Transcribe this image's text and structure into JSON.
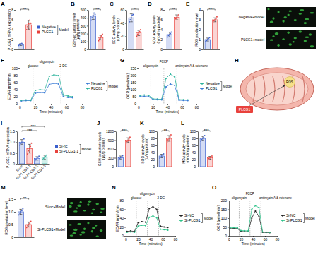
{
  "chart_data": [
    {
      "panel": "A",
      "type": "bar",
      "y_label": "PLCG1 mRNA expression",
      "categories": [
        "Negative",
        "PLCG1"
      ],
      "colors": [
        "#3a5fcd",
        "#e8413c"
      ],
      "values": [
        1.0,
        5.0
      ],
      "errors": [
        0.2,
        0.9
      ],
      "points": [
        [
          0.8,
          0.95,
          1.05,
          1.2,
          0.9
        ],
        [
          4.0,
          4.6,
          5.2,
          5.9,
          5.3
        ]
      ],
      "ylim": [
        0,
        8
      ],
      "yticks": [
        0,
        2,
        4,
        6,
        8
      ],
      "tick_labels": "y",
      "legend": "right",
      "legend_title": "Model",
      "significance": [
        {
          "from": 0,
          "to": 1,
          "label": "**"
        }
      ]
    },
    {
      "panel": "B",
      "type": "bar",
      "y_label": "GSH-px activity levels (μg/g protein)",
      "categories": [
        null,
        null
      ],
      "colors": [
        "#3a5fcd",
        "#e8413c"
      ],
      "values": [
        420,
        150
      ],
      "errors": [
        40,
        30
      ],
      "points": [
        [
          370,
          400,
          430,
          460,
          440
        ],
        [
          110,
          130,
          150,
          170,
          190
        ]
      ],
      "ylim": [
        0,
        500
      ],
      "yticks": [
        0,
        100,
        200,
        300,
        400,
        500
      ],
      "tick_labels": "y",
      "significance": [
        {
          "from": 0,
          "to": 1,
          "label": "***"
        }
      ]
    },
    {
      "panel": "C",
      "type": "bar",
      "y_label": "SOD activity levels (U/mg protein)",
      "categories": [
        null,
        null
      ],
      "colors": [
        "#3a5fcd",
        "#e8413c"
      ],
      "values": [
        48,
        25
      ],
      "errors": [
        6,
        4
      ],
      "points": [
        [
          42,
          45,
          48,
          52,
          53
        ],
        [
          20,
          23,
          25,
          27,
          30
        ]
      ],
      "ylim": [
        0,
        60
      ],
      "yticks": [
        0,
        20,
        40,
        60
      ],
      "tick_labels": "y",
      "significance": [
        {
          "from": 0,
          "to": 1,
          "label": "**"
        }
      ]
    },
    {
      "panel": "D",
      "type": "bar",
      "y_label": "MDA activity levels (nmol/mg protein)",
      "categories": [
        null,
        null
      ],
      "colors": [
        "#3a5fcd",
        "#e8413c"
      ],
      "values": [
        3.0,
        6.5
      ],
      "errors": [
        0.5,
        0.5
      ],
      "points": [
        [
          2.5,
          2.8,
          3.0,
          3.2,
          3.5
        ],
        [
          6.0,
          6.2,
          6.5,
          6.8,
          7.0
        ]
      ],
      "ylim": [
        0,
        8
      ],
      "yticks": [
        0,
        2,
        4,
        6,
        8
      ],
      "tick_labels": "y",
      "significance": [
        {
          "from": 0,
          "to": 1,
          "label": "**"
        }
      ]
    },
    {
      "panel": "E",
      "type": "bar",
      "y_label": "ROS production level",
      "categories": [
        null,
        null
      ],
      "colors": [
        "#3a5fcd",
        "#e8413c"
      ],
      "values": [
        1.0,
        3.0
      ],
      "errors": [
        0.15,
        0.2
      ],
      "points": [
        [
          0.8,
          0.9,
          1.0,
          1.1,
          1.2
        ],
        [
          2.7,
          2.9,
          3.0,
          3.1,
          3.3
        ]
      ],
      "ylim": [
        0,
        4
      ],
      "yticks": [
        0,
        1,
        2,
        3,
        4
      ],
      "tick_labels": "y",
      "significance": [
        {
          "from": 0,
          "to": 1,
          "label": "***"
        }
      ]
    },
    {
      "panel": "F",
      "type": "line",
      "y_label": "ECAR (mpH/min)",
      "x_label": "Time (minutes)",
      "x": [
        2,
        8,
        14,
        20,
        26,
        32,
        38,
        44,
        50,
        56,
        62,
        68
      ],
      "xlim": [
        0,
        80
      ],
      "xticks": [
        0,
        20,
        40,
        60,
        80
      ],
      "ylim": [
        0,
        100
      ],
      "yticks": [
        0,
        20,
        40,
        60,
        80,
        100
      ],
      "injections": [
        {
          "label": "glucose",
          "x": 17
        },
        {
          "label": "oligomycin",
          "x": 35
        },
        {
          "label": "2-DG",
          "x": 53
        }
      ],
      "marker": "circle",
      "legend": "right",
      "legend_title": "Model",
      "series": [
        {
          "name": "Negative",
          "color": "#3a7bd5",
          "values": [
            8,
            9,
            9,
            30,
            32,
            31,
            55,
            58,
            56,
            20,
            18,
            17
          ]
        },
        {
          "name": "PLCG1",
          "color": "#29b39b",
          "values": [
            10,
            11,
            10,
            38,
            40,
            39,
            78,
            82,
            80,
            25,
            22,
            20
          ]
        }
      ]
    },
    {
      "panel": "G",
      "type": "line",
      "y_label": "OCR (pmol/min)",
      "x_label": "Time (minutes)",
      "x": [
        2,
        8,
        14,
        20,
        26,
        32,
        38,
        44,
        50,
        56,
        62,
        68
      ],
      "xlim": [
        0,
        80
      ],
      "xticks": [
        0,
        20,
        40,
        60,
        80
      ],
      "ylim": [
        0,
        250
      ],
      "yticks": [
        0,
        50,
        100,
        150,
        200,
        250
      ],
      "injections": [
        {
          "label": "oligomycin",
          "x": 17
        },
        {
          "label": "FCCP",
          "x": 35
        },
        {
          "label": "antimycin A & rotenone",
          "x": 53
        }
      ],
      "marker": "circle",
      "legend": "right",
      "legend_title": "Model",
      "series": [
        {
          "name": "Negative",
          "color": "#29b39b",
          "values": [
            60,
            62,
            60,
            35,
            33,
            32,
            180,
            210,
            190,
            30,
            28,
            27
          ]
        },
        {
          "name": "PLCG1",
          "color": "#3a7bd5",
          "values": [
            50,
            52,
            50,
            30,
            29,
            28,
            120,
            140,
            130,
            25,
            24,
            23
          ]
        }
      ]
    },
    {
      "panel": "I",
      "type": "bar",
      "y_label": "PLCG1 mRNA expression",
      "categories": [
        "Si-nc",
        "Si-PLCG1-1",
        "Si-PLCG1-2",
        "Si-PLCG1-3"
      ],
      "colors": [
        "#3a5fcd",
        "#e8413c",
        "#3a5fcd",
        "#2fb5a0"
      ],
      "values": [
        1.0,
        0.7,
        0.25,
        0.3
      ],
      "errors": [
        0.12,
        0.2,
        0.08,
        0.1
      ],
      "points": [
        [
          0.85,
          0.95,
          1.0,
          1.05,
          1.15
        ],
        [
          0.45,
          0.6,
          0.7,
          0.8,
          0.95
        ],
        [
          0.15,
          0.2,
          0.25,
          0.3,
          0.35
        ],
        [
          0.2,
          0.25,
          0.3,
          0.35,
          0.4
        ]
      ],
      "ylim": [
        0,
        1.5
      ],
      "yticks": [
        0,
        0.5,
        {
          "value": 1,
          "label": "1.0"
        },
        1.5
      ],
      "significance": [
        {
          "from": 0,
          "to": 2,
          "label": "***"
        },
        {
          "from": 0,
          "to": 3,
          "label": "***"
        }
      ]
    },
    {
      "panel": "J",
      "type": "bar",
      "y_label": "GSH-px activity levels (μg/g protein)",
      "categories": [
        "Si-nc",
        "Si-PLCG1-1"
      ],
      "colors": [
        "#3a5fcd",
        "#e8413c"
      ],
      "values": [
        300,
        900
      ],
      "errors": [
        60,
        80
      ],
      "points": [
        [
          230,
          270,
          300,
          330,
          370
        ],
        [
          800,
          860,
          900,
          940,
          1000
        ]
      ],
      "ylim": [
        0,
        1200
      ],
      "yticks": [
        0,
        300,
        600,
        900,
        1200
      ],
      "tick_labels": "y",
      "legend": "left",
      "legend_title": "Model",
      "significance": [
        {
          "from": 0,
          "to": 1,
          "label": "***"
        }
      ]
    },
    {
      "panel": "K",
      "type": "bar",
      "y_label": "SOD activity levels (U/mg protein)",
      "categories": [
        null,
        null
      ],
      "colors": [
        "#3a5fcd",
        "#e8413c"
      ],
      "values": [
        30,
        80
      ],
      "errors": [
        5,
        8
      ],
      "points": [
        [
          24,
          27,
          30,
          33,
          36
        ],
        [
          70,
          76,
          80,
          84,
          90
        ]
      ],
      "ylim": [
        0,
        100
      ],
      "yticks": [
        0,
        20,
        40,
        60,
        80,
        100
      ],
      "tick_labels": "y",
      "significance": [
        {
          "from": 0,
          "to": 1,
          "label": "**"
        }
      ]
    },
    {
      "panel": "L",
      "type": "bar",
      "y_label": "MDA activity levels (nmol/mg protein)",
      "categories": [
        null,
        null
      ],
      "colors": [
        "#3a5fcd",
        "#e8413c"
      ],
      "values": [
        80,
        25
      ],
      "errors": [
        6,
        4
      ],
      "points": [
        [
          72,
          77,
          80,
          83,
          88
        ],
        [
          20,
          23,
          25,
          27,
          30
        ]
      ],
      "ylim": [
        0,
        100
      ],
      "yticks": [
        0,
        20,
        40,
        60,
        80,
        100
      ],
      "tick_labels": "y",
      "significance": [
        {
          "from": 0,
          "to": 1,
          "label": "***"
        }
      ]
    },
    {
      "panel": "M",
      "type": "bar",
      "y_label": "ROS production level",
      "categories": [
        null,
        null
      ],
      "colors": [
        "#3a5fcd",
        "#e8413c"
      ],
      "values": [
        1.0,
        0.5
      ],
      "errors": [
        0.1,
        0.1
      ],
      "points": [
        [
          0.88,
          0.95,
          1.0,
          1.05,
          1.12
        ],
        [
          0.38,
          0.45,
          0.5,
          0.55,
          0.62
        ]
      ],
      "ylim": [
        0,
        1.5
      ],
      "yticks": [
        0,
        0.5,
        {
          "value": 1,
          "label": "1.0"
        },
        1.5
      ],
      "tick_labels": "y",
      "significance": [
        {
          "from": 0,
          "to": 1,
          "label": "**"
        }
      ]
    },
    {
      "panel": "N",
      "type": "line",
      "y_label": "ECAR (mpH/min)",
      "x_label": "Time (minutes)",
      "x": [
        2,
        8,
        14,
        20,
        26,
        32,
        38,
        44,
        50,
        56,
        62,
        68
      ],
      "xlim": [
        0,
        80
      ],
      "xticks": [
        0,
        20,
        40,
        60,
        80
      ],
      "ylim": [
        0,
        80
      ],
      "yticks": [
        0,
        20,
        40,
        60,
        80
      ],
      "injections": [
        {
          "label": "glucose",
          "x": 17
        },
        {
          "label": "oligomycin",
          "x": 35
        },
        {
          "label": "2-DG",
          "x": 53
        }
      ],
      "marker": "circle",
      "legend": "right",
      "legend_title": "Model",
      "series": [
        {
          "name": "Si-NC",
          "color": "#222222",
          "values": [
            10,
            11,
            10,
            30,
            32,
            31,
            62,
            66,
            60,
            22,
            20,
            19
          ]
        },
        {
          "name": "Si-PLCG1",
          "color": "#2fc28a",
          "values": [
            8,
            9,
            8,
            22,
            24,
            23,
            42,
            45,
            41,
            15,
            14,
            13
          ]
        }
      ]
    },
    {
      "panel": "O",
      "type": "line",
      "y_label": "OCR (pmol/min)",
      "x_label": "Time (minutes)",
      "x": [
        2,
        8,
        14,
        20,
        26,
        32,
        38,
        44,
        50,
        56,
        62,
        68
      ],
      "xlim": [
        0,
        80
      ],
      "xticks": [
        0,
        20,
        40,
        60,
        80
      ],
      "ylim": [
        0,
        200
      ],
      "yticks": [
        0,
        50,
        100,
        150,
        200
      ],
      "injections": [
        {
          "label": "oligomycin",
          "x": 17
        },
        {
          "label": "FCCP",
          "x": 35
        },
        {
          "label": "antimycin A & rotenone",
          "x": 53
        }
      ],
      "marker": "circle",
      "legend": "right",
      "legend_title": "Model",
      "series": [
        {
          "name": "Si-NC",
          "color": "#222222",
          "values": [
            40,
            42,
            41,
            25,
            24,
            24,
            100,
            140,
            110,
            20,
            19,
            18
          ]
        },
        {
          "name": "Si-PLCG1",
          "color": "#2fc28a",
          "values": [
            45,
            46,
            45,
            30,
            29,
            28,
            150,
            170,
            160,
            22,
            21,
            20
          ]
        }
      ]
    }
  ],
  "images": [
    {
      "label": "Negative+model"
    },
    {
      "label": "PLCG1+model"
    },
    {
      "label": "Si-nc+Model"
    },
    {
      "label": "Si-PLCG1+Model"
    }
  ],
  "diagram": {
    "panel": "H",
    "labels": [
      "ROS",
      "PLCG1"
    ]
  }
}
